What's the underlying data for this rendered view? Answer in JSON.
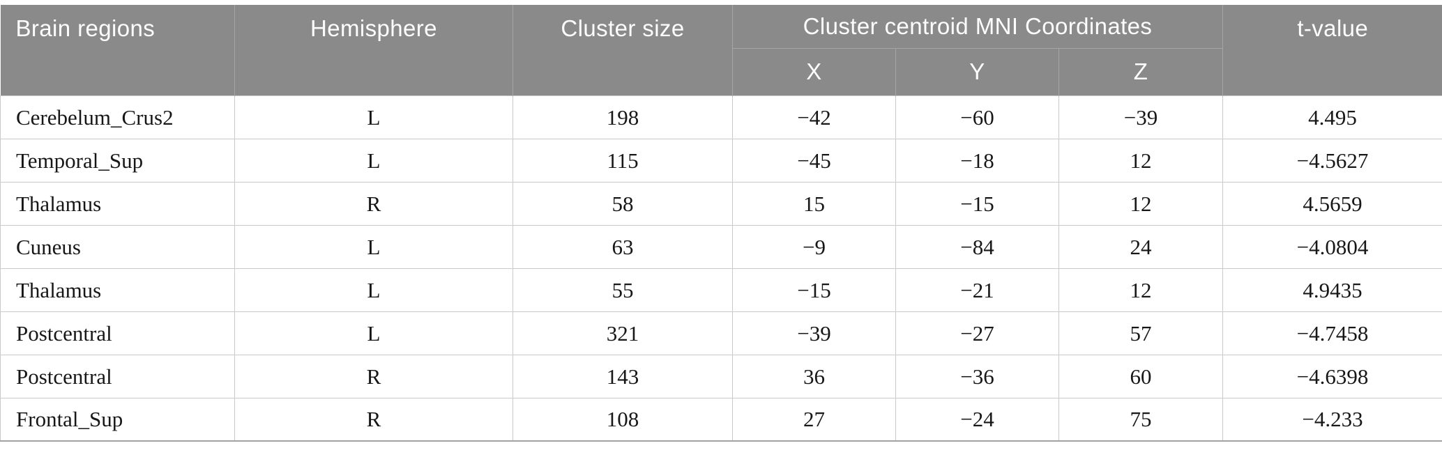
{
  "table": {
    "headers": {
      "brain_regions": "Brain regions",
      "hemisphere": "Hemisphere",
      "cluster_size": "Cluster size",
      "mni_group": "Cluster centroid MNI Coordinates",
      "x": "X",
      "y": "Y",
      "z": "Z",
      "t_value": "t-value"
    },
    "column_keys": [
      "brain-region",
      "hemisphere",
      "cluster-size",
      "mni-x",
      "mni-y",
      "mni-z",
      "t-value"
    ],
    "rows": [
      [
        "Cerebelum_Crus2",
        "L",
        "198",
        "−42",
        "−60",
        "−39",
        "4.495"
      ],
      [
        "Temporal_Sup",
        "L",
        "115",
        "−45",
        "−18",
        "12",
        "−4.5627"
      ],
      [
        "Thalamus",
        "R",
        "58",
        "15",
        "−15",
        "12",
        "4.5659"
      ],
      [
        "Cuneus",
        "L",
        "63",
        "−9",
        "−84",
        "24",
        "−4.0804"
      ],
      [
        "Thalamus",
        "L",
        "55",
        "−15",
        "−21",
        "12",
        "4.9435"
      ],
      [
        "Postcentral",
        "L",
        "321",
        "−39",
        "−27",
        "57",
        "−4.7458"
      ],
      [
        "Postcentral",
        "R",
        "143",
        "36",
        "−36",
        "60",
        "−4.6398"
      ],
      [
        "Frontal_Sup",
        "R",
        "108",
        "27",
        "−24",
        "75",
        "−4.233"
      ]
    ]
  },
  "colors": {
    "header_background": "#8a8a8a",
    "header_text": "#fdfdfd",
    "header_divider": "#a5a5a5",
    "body_text": "#171717",
    "body_border": "#c9c9c9",
    "table_bottom_border": "#a2a2a2",
    "page_background": "#ffffff"
  }
}
